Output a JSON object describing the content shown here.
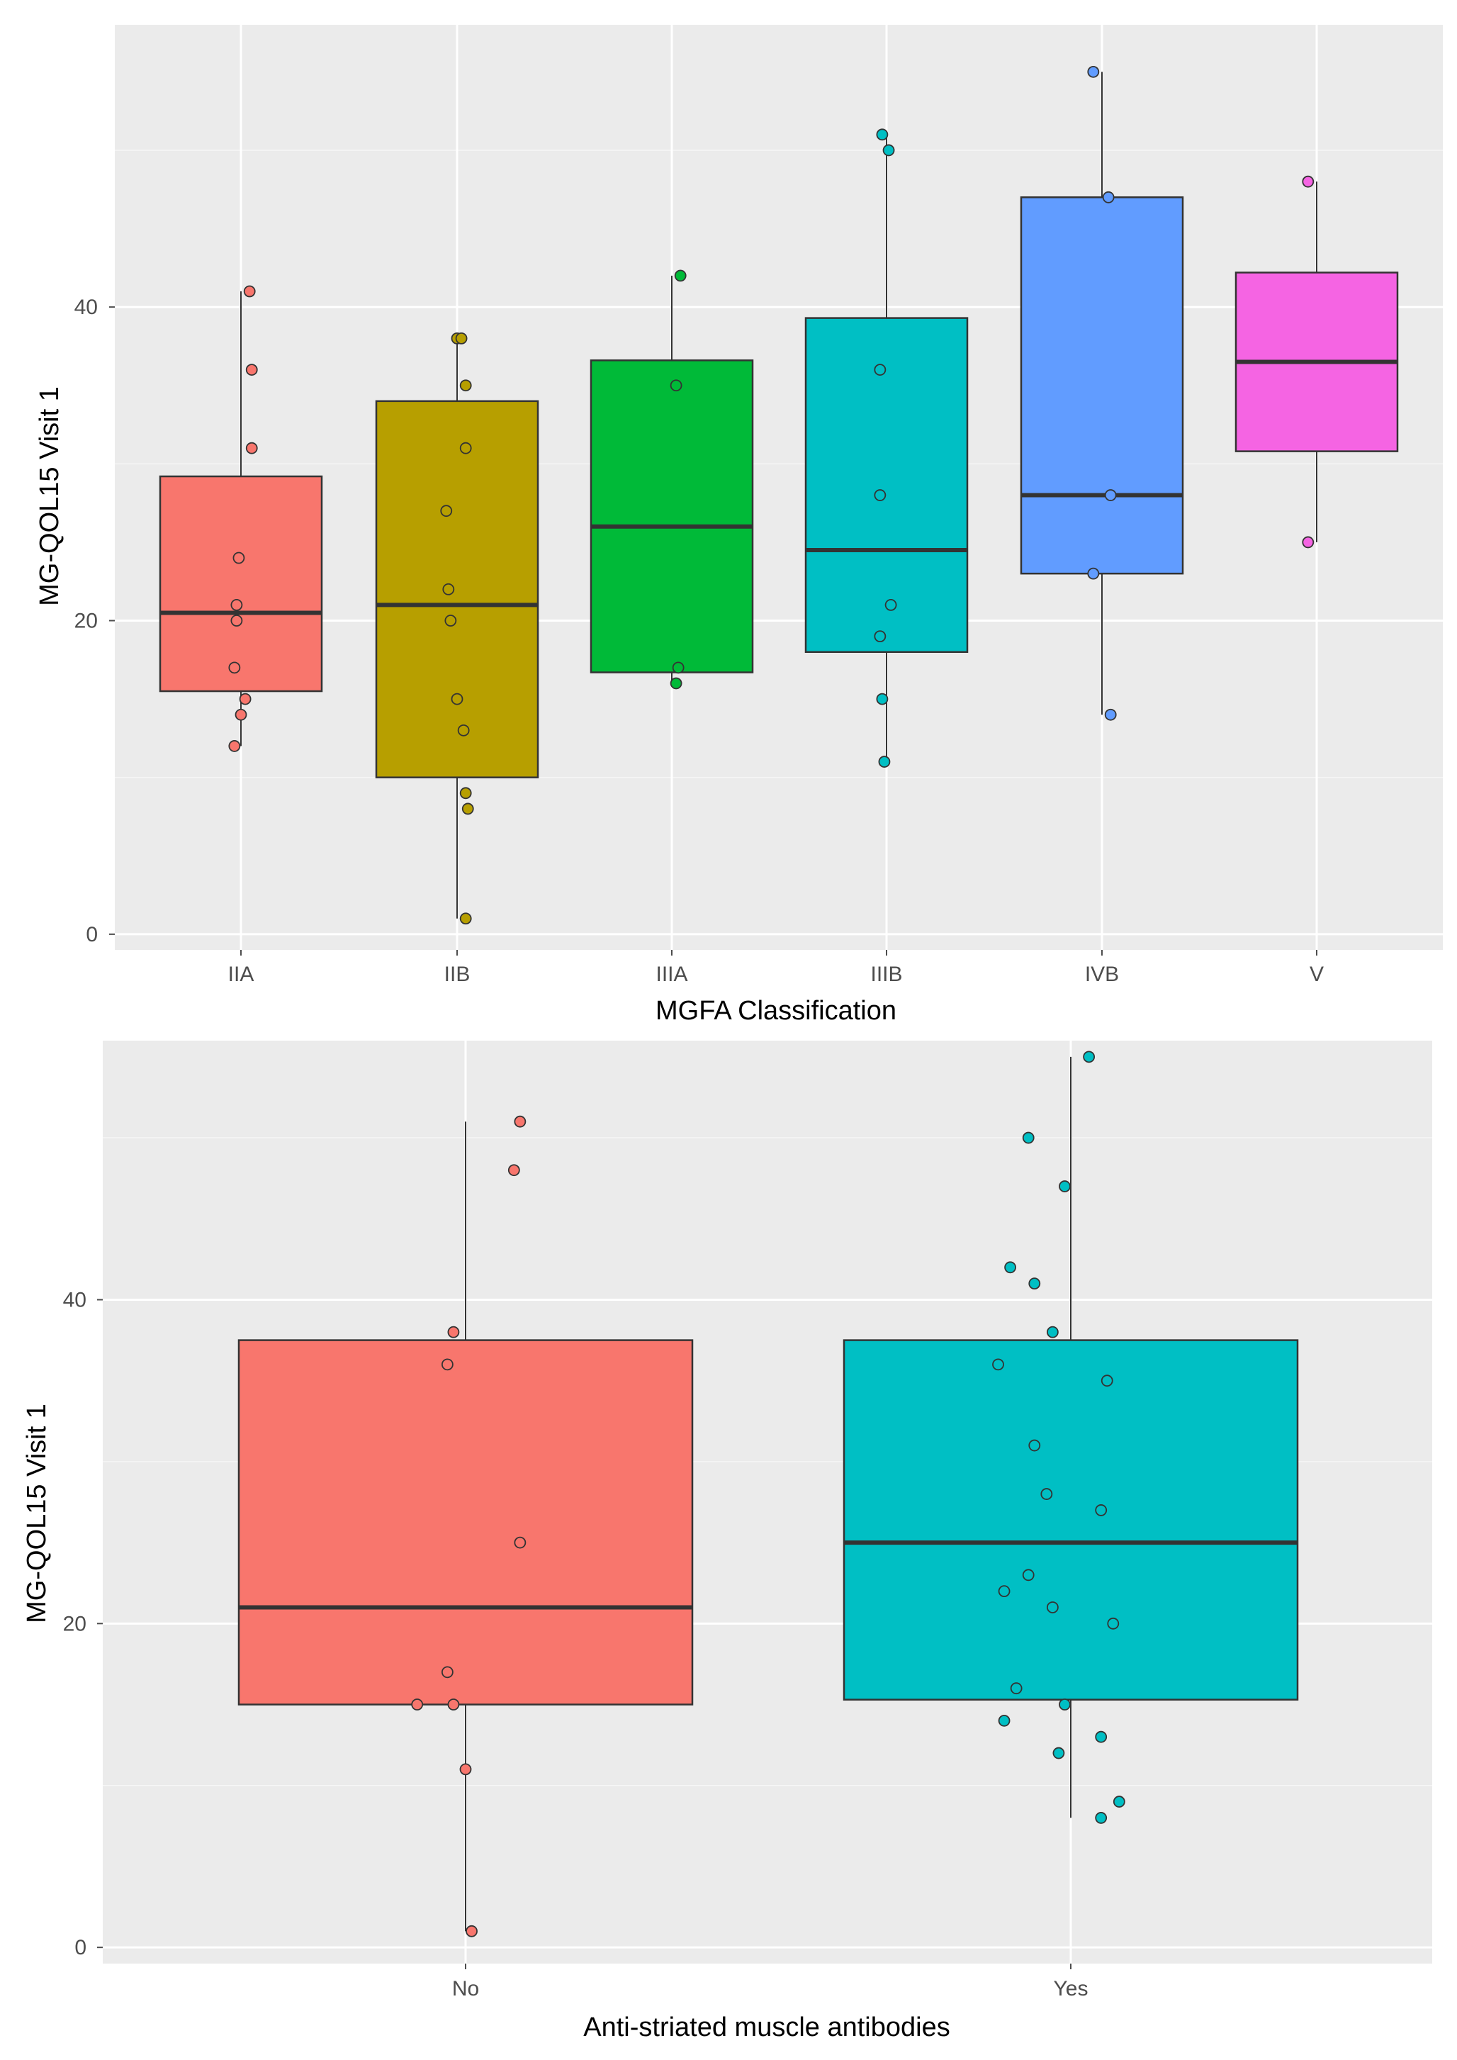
{
  "chart_data": [
    {
      "type": "boxplot",
      "xlabel": "MGFA Classification",
      "ylabel": "MG-QOL15 Visit 1",
      "ylim": [
        -1,
        58
      ],
      "yticks": [
        0,
        20,
        40
      ],
      "grid": true,
      "categories": [
        "IIA",
        "IIB",
        "IIIA",
        "IIIB",
        "IVB",
        "V"
      ],
      "colors": [
        "#F8766D",
        "#B79F00",
        "#00BA38",
        "#00BFC4",
        "#619CFF",
        "#F564E3"
      ],
      "boxes": [
        {
          "q1": 15.5,
          "median": 20.5,
          "q3": 29.2,
          "whisker_low": 12,
          "whisker_high": 41
        },
        {
          "q1": 10,
          "median": 21,
          "q3": 34,
          "whisker_low": 1,
          "whisker_high": 38
        },
        {
          "q1": 16.7,
          "median": 26,
          "q3": 36.6,
          "whisker_low": 16,
          "whisker_high": 42
        },
        {
          "q1": 18,
          "median": 24.5,
          "q3": 39.3,
          "whisker_low": 11,
          "whisker_high": 51
        },
        {
          "q1": 23,
          "median": 28,
          "q3": 47,
          "whisker_low": 14,
          "whisker_high": 55
        },
        {
          "q1": 30.8,
          "median": 36.5,
          "q3": 42.2,
          "whisker_low": 25,
          "whisker_high": 48
        }
      ],
      "points": [
        [
          [
            0.04,
            41
          ],
          [
            0.05,
            36
          ],
          [
            0.05,
            31
          ],
          [
            -0.01,
            24
          ],
          [
            -0.02,
            21
          ],
          [
            -0.02,
            20
          ],
          [
            -0.03,
            17
          ],
          [
            0.02,
            15
          ],
          [
            0,
            14
          ],
          [
            -0.03,
            12
          ]
        ],
        [
          [
            0,
            38
          ],
          [
            0.02,
            38
          ],
          [
            0.04,
            35
          ],
          [
            0.04,
            31
          ],
          [
            -0.05,
            27
          ],
          [
            -0.04,
            22
          ],
          [
            -0.03,
            20
          ],
          [
            0,
            15
          ],
          [
            0.03,
            13
          ],
          [
            0.04,
            9
          ],
          [
            0.05,
            8
          ],
          [
            0.04,
            1
          ]
        ],
        [
          [
            0.04,
            42
          ],
          [
            0.02,
            35
          ],
          [
            0.03,
            17
          ],
          [
            0.02,
            16
          ]
        ],
        [
          [
            -0.02,
            51
          ],
          [
            0.01,
            50
          ],
          [
            -0.03,
            36
          ],
          [
            -0.03,
            28
          ],
          [
            0.02,
            21
          ],
          [
            -0.03,
            19
          ],
          [
            -0.02,
            15
          ],
          [
            -0.01,
            11
          ]
        ],
        [
          [
            -0.04,
            55
          ],
          [
            0.03,
            47
          ],
          [
            0.04,
            28
          ],
          [
            -0.04,
            23
          ],
          [
            0.04,
            14
          ]
        ],
        [
          [
            -0.04,
            48
          ],
          [
            -0.04,
            25
          ]
        ]
      ]
    },
    {
      "type": "boxplot",
      "xlabel": "Anti-striated muscle antibodies",
      "ylabel": "MG-QOL15 Visit 1",
      "ylim": [
        -1,
        56
      ],
      "yticks": [
        0,
        20,
        40
      ],
      "grid": true,
      "categories": [
        "No",
        "Yes"
      ],
      "colors": [
        "#F8766D",
        "#00BFC4"
      ],
      "boxes": [
        {
          "q1": 15,
          "median": 21,
          "q3": 37.5,
          "whisker_low": 1,
          "whisker_high": 51
        },
        {
          "q1": 15.3,
          "median": 25,
          "q3": 37.5,
          "whisker_low": 8,
          "whisker_high": 55
        }
      ],
      "points": [
        [
          [
            0.09,
            51
          ],
          [
            0.08,
            48
          ],
          [
            -0.02,
            38
          ],
          [
            -0.03,
            36
          ],
          [
            0.09,
            25
          ],
          [
            -0.03,
            17
          ],
          [
            -0.08,
            15
          ],
          [
            -0.02,
            15
          ],
          [
            0,
            11
          ],
          [
            0.01,
            1
          ]
        ],
        [
          [
            0.03,
            55
          ],
          [
            -0.07,
            50
          ],
          [
            -0.01,
            47
          ],
          [
            -0.1,
            42
          ],
          [
            -0.06,
            41
          ],
          [
            -0.03,
            38
          ],
          [
            -0.12,
            36
          ],
          [
            0.06,
            35
          ],
          [
            -0.06,
            31
          ],
          [
            -0.04,
            28
          ],
          [
            0.05,
            27
          ],
          [
            -0.07,
            23
          ],
          [
            -0.11,
            22
          ],
          [
            -0.03,
            21
          ],
          [
            0.07,
            20
          ],
          [
            -0.09,
            16
          ],
          [
            -0.01,
            15
          ],
          [
            -0.11,
            14
          ],
          [
            0.05,
            13
          ],
          [
            -0.02,
            12
          ],
          [
            0.08,
            9
          ],
          [
            0.05,
            8
          ]
        ]
      ]
    }
  ]
}
